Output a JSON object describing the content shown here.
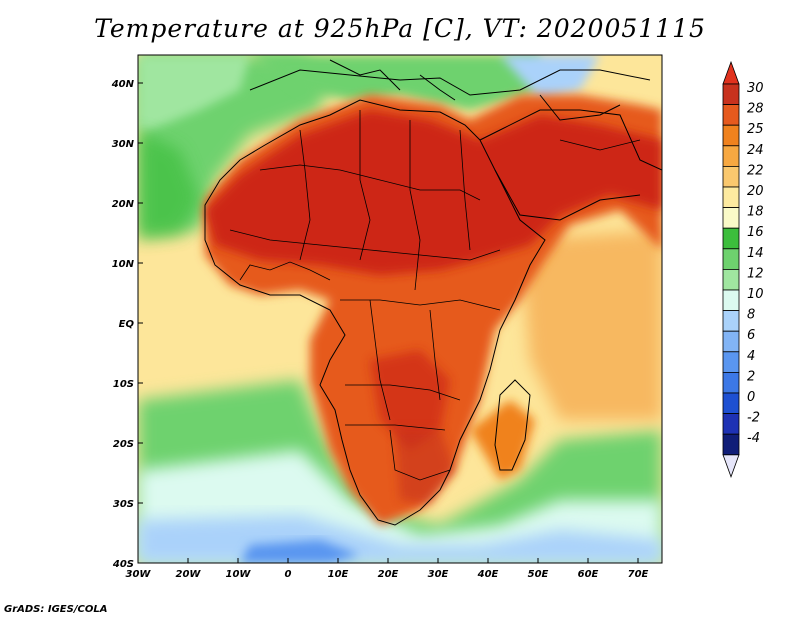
{
  "title": "Temperature at 925hPa [C], VT: 2020051115",
  "credit": "GrADS: IGES/COLA",
  "map": {
    "region": "Africa and surrounding oceans",
    "lon_range": [
      -30,
      75
    ],
    "lat_range": [
      -40,
      45
    ],
    "x_ticks": [
      "30W",
      "20W",
      "10W",
      "0",
      "10E",
      "20E",
      "30E",
      "40E",
      "50E",
      "60E",
      "70E"
    ],
    "y_ticks": [
      "40N",
      "30N",
      "20N",
      "10N",
      "EQ",
      "10S",
      "20S",
      "30S",
      "40S"
    ]
  },
  "colorbar": {
    "labels": [
      "30",
      "28",
      "25",
      "24",
      "22",
      "20",
      "18",
      "16",
      "14",
      "12",
      "10",
      "8",
      "6",
      "4",
      "2",
      "0",
      "-2",
      "-4"
    ],
    "colors": [
      "#c8321e",
      "#e65a1e",
      "#f0821e",
      "#f7a841",
      "#fac86e",
      "#fdeaa0",
      "#fafac8",
      "#3cbe3c",
      "#6ed26e",
      "#a0e6a0",
      "#dcfaf0",
      "#aad2fa",
      "#82b4f5",
      "#5a96f0",
      "#3c78e6",
      "#1e50d2",
      "#1e32b4",
      "#101e78"
    ],
    "top_color": "#e1321e",
    "bottom_color": "#e6e6fa"
  }
}
